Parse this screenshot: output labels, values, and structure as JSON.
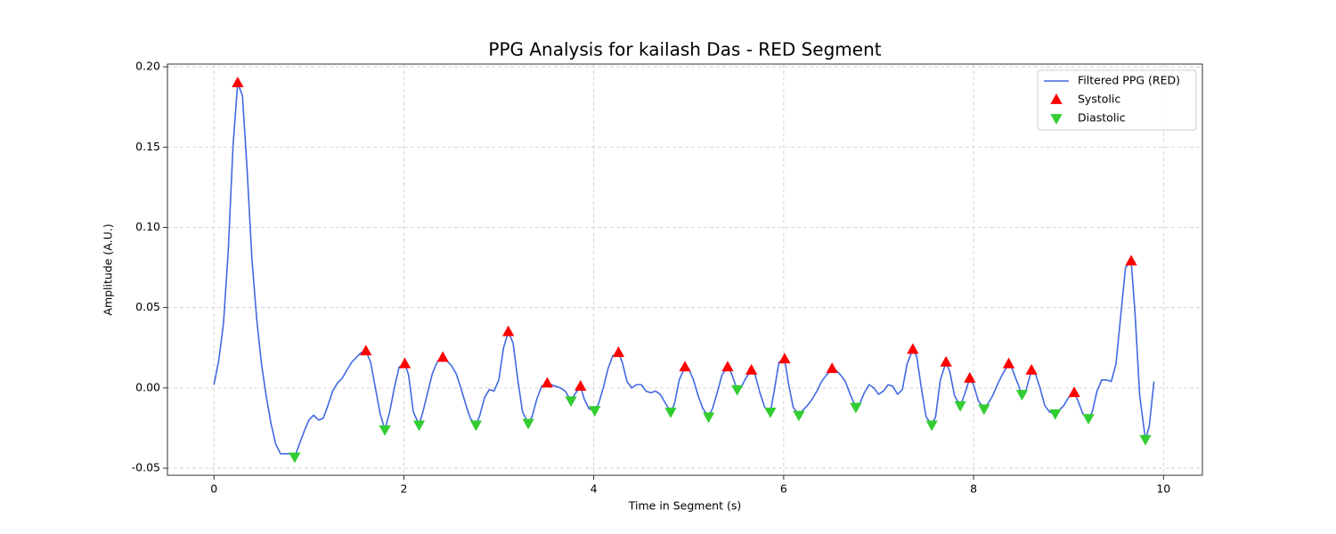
{
  "chart_data": {
    "type": "line",
    "title": "PPG Analysis for kailash Das - RED Segment",
    "xlabel": "Time in Segment (s)",
    "ylabel": "Amplitude (A.U.)",
    "xlim": [
      -0.49,
      10.41
    ],
    "ylim": [
      -0.0544,
      0.2017
    ],
    "xticks": [
      0,
      2,
      4,
      6,
      8,
      10
    ],
    "yticks": [
      -0.05,
      {
        "value": 0,
        "label": "0.00"
      },
      0.05,
      {
        "value": 0.1,
        "label": "0.10"
      },
      0.15,
      {
        "value": 0.2,
        "label": "0.20"
      }
    ],
    "grid": true,
    "legend": "upper right",
    "series": [
      {
        "name": "Filtered PPG (RED)",
        "type": "line",
        "color": "#4169e1",
        "x": [
          0.0,
          0.05,
          0.1,
          0.15,
          0.2,
          0.25,
          0.3,
          0.35,
          0.4,
          0.45,
          0.5,
          0.55,
          0.6,
          0.65,
          0.7,
          0.75,
          0.8,
          0.85,
          0.9,
          0.95,
          1.0,
          1.05,
          1.1,
          1.15,
          1.2,
          1.25,
          1.3,
          1.35,
          1.4,
          1.45,
          1.5,
          1.55,
          1.6,
          1.65,
          1.7,
          1.75,
          1.8,
          1.85,
          1.9,
          1.95,
          2.01,
          2.05,
          2.1,
          2.16,
          2.2,
          2.25,
          2.3,
          2.35,
          2.41,
          2.45,
          2.5,
          2.55,
          2.6,
          2.65,
          2.7,
          2.76,
          2.8,
          2.85,
          2.9,
          2.95,
          3.0,
          3.05,
          3.1,
          3.15,
          3.2,
          3.25,
          3.31,
          3.35,
          3.4,
          3.45,
          3.51,
          3.55,
          3.6,
          3.65,
          3.7,
          3.76,
          3.8,
          3.86,
          3.9,
          3.95,
          4.01,
          4.05,
          4.1,
          4.15,
          4.2,
          4.26,
          4.3,
          4.35,
          4.4,
          4.45,
          4.5,
          4.55,
          4.6,
          4.65,
          4.7,
          4.75,
          4.81,
          4.85,
          4.9,
          4.96,
          5.0,
          5.05,
          5.1,
          5.15,
          5.21,
          5.25,
          5.3,
          5.35,
          5.41,
          5.45,
          5.51,
          5.55,
          5.6,
          5.66,
          5.7,
          5.75,
          5.8,
          5.86,
          5.9,
          5.95,
          6.01,
          6.05,
          6.1,
          6.16,
          6.2,
          6.25,
          6.3,
          6.35,
          6.4,
          6.45,
          6.51,
          6.55,
          6.6,
          6.65,
          6.7,
          6.76,
          6.8,
          6.85,
          6.9,
          6.95,
          7.0,
          7.05,
          7.1,
          7.15,
          7.2,
          7.25,
          7.3,
          7.36,
          7.4,
          7.45,
          7.5,
          7.56,
          7.6,
          7.65,
          7.71,
          7.75,
          7.8,
          7.86,
          7.9,
          7.96,
          8.0,
          8.05,
          8.11,
          8.15,
          8.2,
          8.25,
          8.3,
          8.37,
          8.4,
          8.45,
          8.51,
          8.55,
          8.61,
          8.65,
          8.7,
          8.75,
          8.8,
          8.86,
          8.9,
          8.95,
          9.0,
          9.06,
          9.1,
          9.15,
          9.21,
          9.25,
          9.3,
          9.35,
          9.4,
          9.45,
          9.5,
          9.55,
          9.6,
          9.66,
          9.7,
          9.75,
          9.81,
          9.85,
          9.9
        ],
        "values": [
          0.002,
          0.017,
          0.04,
          0.085,
          0.15,
          0.19,
          0.182,
          0.135,
          0.08,
          0.043,
          0.015,
          -0.005,
          -0.022,
          -0.035,
          -0.041,
          -0.041,
          -0.041,
          -0.043,
          -0.035,
          -0.027,
          -0.02,
          -0.017,
          -0.02,
          -0.019,
          -0.011,
          -0.002,
          0.003,
          0.006,
          0.011,
          0.016,
          0.019,
          0.022,
          0.023,
          0.016,
          0.0,
          -0.016,
          -0.026,
          -0.015,
          0.0,
          0.013,
          0.015,
          0.008,
          -0.015,
          -0.023,
          -0.015,
          -0.003,
          0.009,
          0.016,
          0.019,
          0.017,
          0.014,
          0.009,
          0.0,
          -0.01,
          -0.019,
          -0.023,
          -0.017,
          -0.006,
          -0.001,
          -0.002,
          0.005,
          0.025,
          0.035,
          0.028,
          0.005,
          -0.015,
          -0.022,
          -0.018,
          -0.007,
          0.001,
          0.003,
          0.002,
          0.001,
          0.0,
          -0.002,
          -0.008,
          -0.004,
          0.001,
          -0.007,
          -0.013,
          -0.014,
          -0.01,
          0.0,
          0.012,
          0.02,
          0.022,
          0.016,
          0.004,
          0.0,
          0.002,
          0.002,
          -0.002,
          -0.003,
          -0.002,
          -0.004,
          -0.009,
          -0.015,
          -0.01,
          0.005,
          0.013,
          0.012,
          0.005,
          -0.005,
          -0.013,
          -0.018,
          -0.013,
          -0.003,
          0.008,
          0.013,
          0.009,
          -0.001,
          0.0,
          0.006,
          0.011,
          0.008,
          -0.003,
          -0.012,
          -0.015,
          -0.002,
          0.016,
          0.018,
          0.003,
          -0.012,
          -0.017,
          -0.014,
          -0.011,
          -0.007,
          -0.002,
          0.004,
          0.008,
          0.012,
          0.011,
          0.008,
          0.004,
          -0.004,
          -0.012,
          -0.01,
          -0.003,
          0.002,
          0.0,
          -0.004,
          -0.002,
          0.002,
          0.001,
          -0.004,
          -0.001,
          0.015,
          0.024,
          0.02,
          0.0,
          -0.018,
          -0.023,
          -0.018,
          0.005,
          0.016,
          0.01,
          -0.005,
          -0.011,
          -0.005,
          0.006,
          0.002,
          -0.008,
          -0.013,
          -0.01,
          -0.005,
          0.002,
          0.008,
          0.015,
          0.013,
          0.005,
          -0.004,
          -0.002,
          0.011,
          0.009,
          0.0,
          -0.011,
          -0.015,
          -0.016,
          -0.014,
          -0.011,
          -0.006,
          -0.003,
          -0.008,
          -0.016,
          -0.019,
          -0.015,
          -0.002,
          0.005,
          0.005,
          0.004,
          0.015,
          0.045,
          0.075,
          0.079,
          0.047,
          -0.005,
          -0.032,
          -0.024,
          0.004
        ]
      },
      {
        "name": "Systolic",
        "type": "scatter",
        "marker": "triangle-up",
        "color": "#ff0000",
        "x": [
          0.25,
          1.6,
          2.01,
          2.41,
          3.1,
          3.51,
          3.86,
          4.26,
          4.96,
          5.41,
          5.66,
          6.01,
          6.51,
          7.36,
          7.71,
          7.96,
          8.37,
          8.61,
          9.06,
          9.66
        ],
        "values": [
          0.19,
          0.023,
          0.015,
          0.019,
          0.035,
          0.003,
          0.001,
          0.022,
          0.013,
          0.013,
          0.011,
          0.018,
          0.012,
          0.024,
          0.016,
          0.006,
          0.015,
          0.011,
          -0.003,
          0.079
        ]
      },
      {
        "name": "Diastolic",
        "type": "scatter",
        "marker": "triangle-down",
        "color": "#32cd32",
        "x": [
          0.85,
          1.8,
          2.16,
          2.76,
          3.31,
          3.76,
          4.01,
          4.81,
          5.21,
          5.51,
          5.86,
          6.16,
          6.76,
          7.56,
          7.86,
          8.11,
          8.51,
          8.86,
          9.21,
          9.81
        ],
        "values": [
          -0.043,
          -0.026,
          -0.023,
          -0.023,
          -0.022,
          -0.008,
          -0.014,
          -0.015,
          -0.018,
          -0.001,
          -0.015,
          -0.017,
          -0.012,
          -0.023,
          -0.011,
          -0.013,
          -0.004,
          -0.016,
          -0.019,
          -0.032
        ]
      }
    ]
  }
}
